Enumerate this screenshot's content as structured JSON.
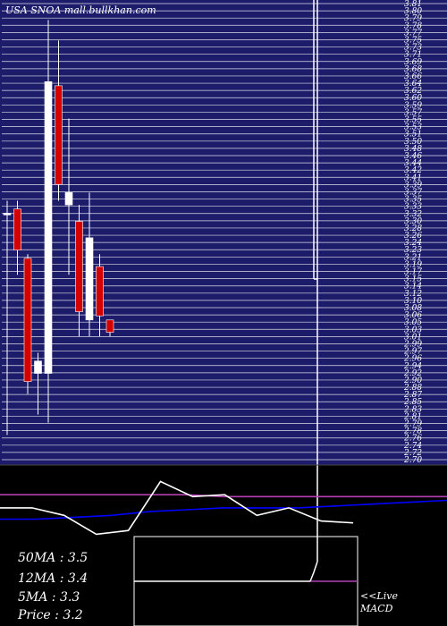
{
  "header": {
    "title": "USA SNOA mall.bullkhan.com"
  },
  "chart_data": {
    "type": "candlestick",
    "candles": [
      {
        "o": 3.3,
        "h": 3.33,
        "l": 2.76,
        "c": 3.3,
        "color": "white"
      },
      {
        "o": 3.31,
        "h": 3.33,
        "l": 3.15,
        "c": 3.21,
        "color": "red"
      },
      {
        "o": 3.19,
        "h": 3.2,
        "l": 2.86,
        "c": 2.89,
        "color": "red"
      },
      {
        "o": 2.91,
        "h": 2.96,
        "l": 2.81,
        "c": 2.94,
        "color": "white"
      },
      {
        "o": 2.91,
        "h": 3.77,
        "l": 2.79,
        "c": 3.62,
        "color": "white"
      },
      {
        "o": 3.61,
        "h": 3.72,
        "l": 3.33,
        "c": 3.37,
        "color": "red"
      },
      {
        "o": 3.32,
        "h": 3.53,
        "l": 3.15,
        "c": 3.35,
        "color": "white"
      },
      {
        "o": 3.28,
        "h": 3.32,
        "l": 3.0,
        "c": 3.06,
        "color": "red"
      },
      {
        "o": 3.04,
        "h": 3.35,
        "l": 3.0,
        "c": 3.24,
        "color": "white"
      },
      {
        "o": 3.17,
        "h": 3.2,
        "l": 3.0,
        "c": 3.05,
        "color": "red"
      },
      {
        "o": 3.04,
        "h": 3.04,
        "l": 3.0,
        "c": 3.01,
        "color": "red"
      }
    ],
    "y_tick_labels": [
      "3.81",
      "3.80",
      "3.79",
      "3.78",
      "3.77",
      "3.75",
      "3.73",
      "3.71",
      "3.69",
      "3.68",
      "3.66",
      "3.64",
      "3.62",
      "3.60",
      "3.59",
      "3.57",
      "3.55",
      "3.53",
      "3.51",
      "3.50",
      "3.48",
      "3.46",
      "3.44",
      "3.42",
      "3.41",
      "3.39",
      "3.37",
      "3.35",
      "3.33",
      "3.32",
      "3.30",
      "3.28",
      "3.26",
      "3.24",
      "3.23",
      "3.21",
      "3.19",
      "3.17",
      "3.15",
      "3.14",
      "3.12",
      "3.10",
      "3.08",
      "3.06",
      "3.05",
      "3.03",
      "3.01",
      "2.99",
      "2.97",
      "2.96",
      "2.94",
      "2.92",
      "2.90",
      "2.88",
      "2.87",
      "2.85",
      "2.83",
      "2.81",
      "2.79",
      "2.78",
      "2.76",
      "2.74",
      "2.72",
      "2.70"
    ],
    "ylim": [
      2.7,
      3.81
    ],
    "lines": {
      "ma50": [
        3.45,
        3.45,
        3.45,
        3.45,
        3.45,
        3.45,
        3.44,
        3.44,
        3.44,
        3.44,
        3.44,
        3.44,
        3.44
      ],
      "ma12": [
        3.32,
        3.32,
        3.33,
        3.34,
        3.36,
        3.37,
        3.38,
        3.38,
        3.38,
        3.39,
        3.4,
        3.41,
        3.42
      ],
      "ma5": [
        3.38,
        3.38,
        3.34,
        3.24,
        3.26,
        3.52,
        3.44,
        3.45,
        3.34,
        3.38,
        3.31,
        3.3
      ]
    },
    "legend": [
      {
        "label": "50MA",
        "value": "3.5"
      },
      {
        "label": "12MA",
        "value": "3.4"
      },
      {
        "label": "5MA",
        "value": "3.3"
      },
      {
        "label": "Price",
        "value": "3.2"
      }
    ],
    "annotation": {
      "line1": "<<Live",
      "line2": "MACD"
    },
    "colors": {
      "background": "#000000",
      "price_grid_bg": "#1c1c6b",
      "grid_line": "#ffffff",
      "up_candle": "#ffffff",
      "down_candle": "#d40000",
      "ma50": "#b23fb2",
      "ma12": "#0000ff",
      "ma5": "#ffffff"
    }
  }
}
